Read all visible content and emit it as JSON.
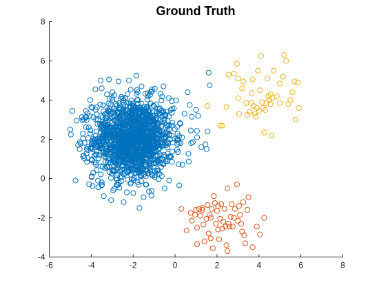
{
  "chart_data": {
    "type": "scatter",
    "title": "Ground Truth",
    "xlabel": "",
    "ylabel": "",
    "xlim": [
      -6,
      8
    ],
    "ylim": [
      -4,
      8
    ],
    "xticks": [
      -6,
      -4,
      -2,
      0,
      2,
      4,
      6,
      8
    ],
    "yticks": [
      -4,
      -2,
      0,
      2,
      4,
      6,
      8
    ],
    "grid": false,
    "legend": "none",
    "marker": "open-circle",
    "series": [
      {
        "color": "#0072BD",
        "distribution": {
          "n": 1400,
          "center": [
            -2.0,
            2.0
          ],
          "std": [
            0.95,
            1.0
          ]
        },
        "points": [
          [
            -5.0,
            2.5
          ],
          [
            -4.9,
            3.45
          ],
          [
            -4.75,
            -0.1
          ],
          [
            -4.7,
            2.95
          ],
          [
            -4.55,
            1.5
          ],
          [
            -4.4,
            2.3
          ],
          [
            -4.25,
            3.45
          ],
          [
            -4.2,
            0.85
          ],
          [
            -4.1,
            -0.3
          ],
          [
            -4.05,
            4.0
          ],
          [
            -3.9,
            0.3
          ],
          [
            -3.8,
            4.55
          ],
          [
            -3.55,
            5.0
          ],
          [
            -3.5,
            -0.35
          ],
          [
            -3.5,
            4.6
          ],
          [
            -3.4,
            -0.9
          ],
          [
            -3.3,
            1.75
          ],
          [
            -3.25,
            4.3
          ],
          [
            -3.15,
            5.05
          ],
          [
            -3.05,
            -1.1
          ],
          [
            -2.95,
            -0.6
          ],
          [
            -2.9,
            4.25
          ],
          [
            -2.7,
            4.95
          ],
          [
            -2.45,
            -1.2
          ],
          [
            -2.3,
            -0.7
          ],
          [
            -2.2,
            5.0
          ],
          [
            -1.85,
            5.25
          ],
          [
            -1.6,
            4.7
          ],
          [
            -1.5,
            -0.95
          ],
          [
            -1.4,
            -0.3
          ],
          [
            -1.3,
            4.35
          ],
          [
            -1.2,
            1.2
          ],
          [
            -1.1,
            4.55
          ],
          [
            -0.9,
            3.1
          ],
          [
            -0.85,
            0.4
          ],
          [
            -0.55,
            4.7
          ],
          [
            -0.5,
            -0.5
          ],
          [
            -0.3,
            4.1
          ],
          [
            -0.2,
            3.5
          ],
          [
            -0.15,
            0.85
          ],
          [
            0.1,
            2.0
          ],
          [
            0.2,
            -0.35
          ],
          [
            0.25,
            2.8
          ],
          [
            0.35,
            0.7
          ],
          [
            0.45,
            3.3
          ],
          [
            0.6,
            4.4
          ],
          [
            0.7,
            3.75
          ],
          [
            0.75,
            2.45
          ],
          [
            0.8,
            3.15
          ],
          [
            1.0,
            3.5
          ],
          [
            1.05,
            2.1
          ],
          [
            1.1,
            3.2
          ],
          [
            1.25,
            1.6
          ],
          [
            1.6,
            5.4
          ],
          [
            1.65,
            4.75
          ],
          [
            1.55,
            2.4
          ],
          [
            1.45,
            1.75
          ],
          [
            1.5,
            1.5
          ],
          [
            -1.7,
            -1.5
          ]
        ]
      },
      {
        "color": "#D95319",
        "points": [
          [
            0.3,
            -1.55
          ],
          [
            0.55,
            -2.65
          ],
          [
            0.75,
            -1.75
          ],
          [
            0.8,
            -2.15
          ],
          [
            1.0,
            -1.6
          ],
          [
            1.05,
            -3.35
          ],
          [
            1.05,
            -2.5
          ],
          [
            1.15,
            -1.55
          ],
          [
            1.2,
            -1.9
          ],
          [
            1.3,
            -1.5
          ],
          [
            1.35,
            -2.35
          ],
          [
            1.5,
            -2.05
          ],
          [
            1.55,
            -1.35
          ],
          [
            1.65,
            -1.85
          ],
          [
            1.7,
            -3.05
          ],
          [
            1.7,
            -2.0
          ],
          [
            1.75,
            -1.55
          ],
          [
            1.8,
            -3.55
          ],
          [
            1.85,
            -0.9
          ],
          [
            1.9,
            -1.25
          ],
          [
            1.95,
            -2.3
          ],
          [
            2.0,
            -1.65
          ],
          [
            2.05,
            -2.6
          ],
          [
            2.05,
            -1.4
          ],
          [
            2.15,
            -2.05
          ],
          [
            2.2,
            -1.3
          ],
          [
            2.25,
            -2.55
          ],
          [
            2.3,
            -2.2
          ],
          [
            2.35,
            -1.55
          ],
          [
            2.4,
            -2.45
          ],
          [
            2.45,
            -3.4
          ],
          [
            2.5,
            -3.7
          ],
          [
            2.5,
            -0.5
          ],
          [
            2.55,
            -2.3
          ],
          [
            2.6,
            -2.45
          ],
          [
            2.65,
            -1.95
          ],
          [
            2.7,
            -1.3
          ],
          [
            2.75,
            -2.45
          ],
          [
            2.8,
            -2.0
          ],
          [
            2.85,
            -1.55
          ],
          [
            2.95,
            -0.3
          ],
          [
            3.0,
            -2.15
          ],
          [
            3.05,
            -1.4
          ],
          [
            3.1,
            -1.85
          ],
          [
            3.15,
            -2.3
          ],
          [
            3.2,
            -2.7
          ],
          [
            3.25,
            -1.2
          ],
          [
            3.3,
            -2.9
          ],
          [
            3.35,
            -3.3
          ],
          [
            3.45,
            -1.6
          ],
          [
            3.5,
            -0.95
          ],
          [
            3.7,
            -3.5
          ],
          [
            3.9,
            -2.45
          ],
          [
            4.05,
            -2.85
          ],
          [
            4.25,
            -2.0
          ],
          [
            2.1,
            -3.1
          ],
          [
            1.4,
            -3.2
          ],
          [
            1.3,
            -1.6
          ],
          [
            0.95,
            -1.85
          ],
          [
            1.6,
            -2.8
          ]
        ]
      },
      {
        "color": "#EDB120",
        "points": [
          [
            1.55,
            3.7
          ],
          [
            2.15,
            2.7
          ],
          [
            2.25,
            2.7
          ],
          [
            2.45,
            3.65
          ],
          [
            2.55,
            5.3
          ],
          [
            2.8,
            5.35
          ],
          [
            2.95,
            5.85
          ],
          [
            3.0,
            4.1
          ],
          [
            3.05,
            3.3
          ],
          [
            3.2,
            4.6
          ],
          [
            3.25,
            4.95
          ],
          [
            3.4,
            3.85
          ],
          [
            3.45,
            3.25
          ],
          [
            3.55,
            3.4
          ],
          [
            3.65,
            4.35
          ],
          [
            3.65,
            3.85
          ],
          [
            3.7,
            5.05
          ],
          [
            3.75,
            3.7
          ],
          [
            3.8,
            3.3
          ],
          [
            3.85,
            3.15
          ],
          [
            3.9,
            3.6
          ],
          [
            3.95,
            5.5
          ],
          [
            4.0,
            3.45
          ],
          [
            4.05,
            4.5
          ],
          [
            4.1,
            6.25
          ],
          [
            4.15,
            3.9
          ],
          [
            4.2,
            3.6
          ],
          [
            4.25,
            2.35
          ],
          [
            4.3,
            3.5
          ],
          [
            4.35,
            3.85
          ],
          [
            4.4,
            5.1
          ],
          [
            4.45,
            4.2
          ],
          [
            4.5,
            4.0
          ],
          [
            4.55,
            3.8
          ],
          [
            4.6,
            2.2
          ],
          [
            4.65,
            4.1
          ],
          [
            4.7,
            5.5
          ],
          [
            4.85,
            4.2
          ],
          [
            5.0,
            4.85
          ],
          [
            5.0,
            3.85
          ],
          [
            5.15,
            5.2
          ],
          [
            5.2,
            6.3
          ],
          [
            5.3,
            6.0
          ],
          [
            5.4,
            3.8
          ],
          [
            5.5,
            4.0
          ],
          [
            5.6,
            4.4
          ],
          [
            5.7,
            4.95
          ],
          [
            5.75,
            3.0
          ],
          [
            5.85,
            4.9
          ],
          [
            5.9,
            3.6
          ],
          [
            4.55,
            4.3
          ],
          [
            3.0,
            5.1
          ]
        ]
      }
    ]
  }
}
